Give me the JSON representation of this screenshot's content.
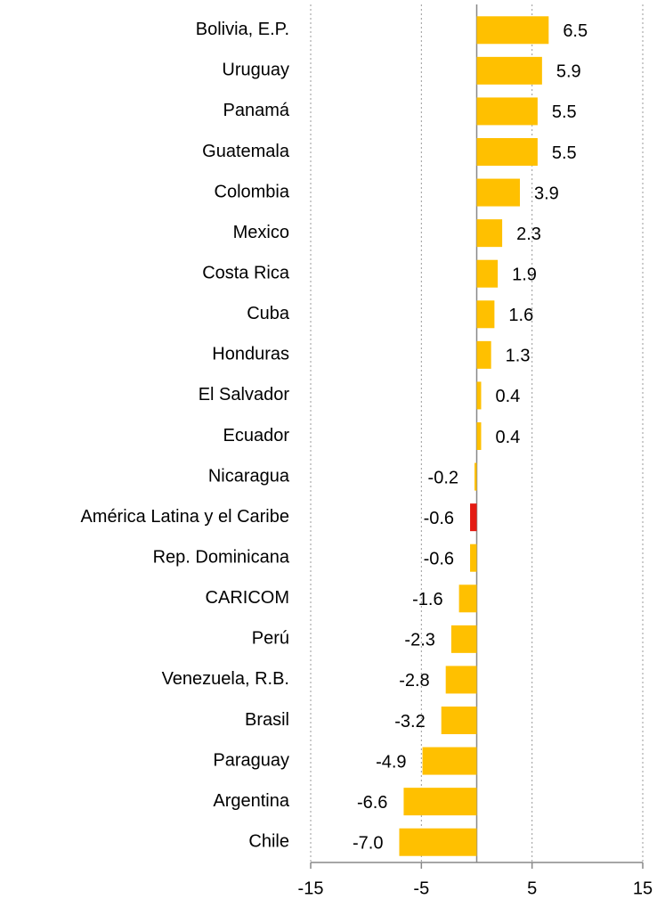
{
  "chart_data": {
    "type": "barh",
    "categories": [
      "Bolivia, E.P.",
      "Uruguay",
      "Panamá",
      "Guatemala",
      "Colombia",
      "Mexico",
      "Costa Rica",
      "Cuba",
      "Honduras",
      "El Salvador",
      "Ecuador",
      "Nicaragua",
      "América Latina y el Caribe",
      "Rep. Dominicana",
      "CARICOM",
      "Perú",
      "Venezuela, R.B.",
      "Brasil",
      "Paraguay",
      "Argentina",
      "Chile"
    ],
    "values": [
      6.5,
      5.9,
      5.5,
      5.5,
      3.9,
      2.3,
      1.9,
      1.6,
      1.3,
      0.4,
      0.4,
      -0.2,
      -0.6,
      -0.6,
      -1.6,
      -2.3,
      -2.8,
      -3.2,
      -4.9,
      -6.6,
      -7.0
    ],
    "value_labels": [
      "6.5",
      "5.9",
      "5.5",
      "5.5",
      "3.9",
      "2.3",
      "1.9",
      "1.6",
      "1.3",
      "0.4",
      "0.4",
      "-0.2",
      "-0.6",
      "-0.6",
      "-1.6",
      "-2.3",
      "-2.8",
      "-3.2",
      "-4.9",
      "-6.6",
      "-7.0"
    ],
    "colors": [
      "#FFC000",
      "#FFC000",
      "#FFC000",
      "#FFC000",
      "#FFC000",
      "#FFC000",
      "#FFC000",
      "#FFC000",
      "#FFC000",
      "#FFC000",
      "#FFC000",
      "#FFC000",
      "#E41B13",
      "#FFC000",
      "#FFC000",
      "#FFC000",
      "#FFC000",
      "#FFC000",
      "#FFC000",
      "#FFC000",
      "#FFC000"
    ],
    "xlim": [
      -15,
      15
    ],
    "xticks": [
      -15,
      -5,
      5,
      15
    ],
    "grid": true
  }
}
